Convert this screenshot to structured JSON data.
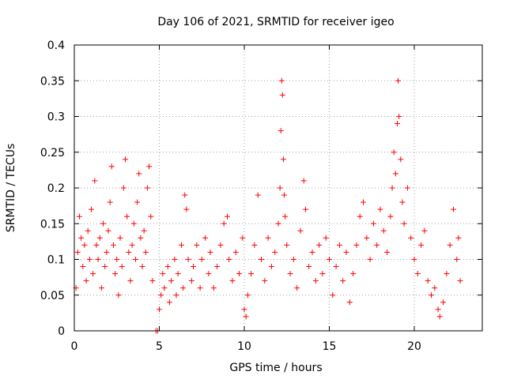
{
  "chart_data": {
    "type": "scatter",
    "title": "Day 106 of 2021, SRMTID for receiver igeo",
    "xlabel": "GPS time / hours",
    "ylabel": "SRMTID / TECUs",
    "xlim": [
      0,
      24
    ],
    "ylim": [
      0,
      0.4
    ],
    "x_ticks": [
      0,
      5,
      10,
      15,
      20
    ],
    "y_ticks": [
      0,
      0.05,
      0.1,
      0.15,
      0.2,
      0.25,
      0.3,
      0.35,
      0.4
    ],
    "x_tick_labels": [
      "0",
      "5",
      "10",
      "15",
      "20"
    ],
    "y_tick_labels": [
      "0",
      "0.05",
      "0.1",
      "0.15",
      "0.2",
      "0.25",
      "0.3",
      "0.35",
      "0.4"
    ],
    "grid": true,
    "marker": "+",
    "marker_color": "#ff0000",
    "series": [
      {
        "name": "SRMTID",
        "points": [
          [
            0.1,
            0.06
          ],
          [
            0.2,
            0.11
          ],
          [
            0.3,
            0.16
          ],
          [
            0.4,
            0.13
          ],
          [
            0.5,
            0.09
          ],
          [
            0.6,
            0.12
          ],
          [
            0.7,
            0.07
          ],
          [
            0.8,
            0.14
          ],
          [
            0.9,
            0.1
          ],
          [
            1.0,
            0.17
          ],
          [
            1.1,
            0.08
          ],
          [
            1.2,
            0.21
          ],
          [
            1.3,
            0.12
          ],
          [
            1.4,
            0.1
          ],
          [
            1.5,
            0.13
          ],
          [
            1.6,
            0.06
          ],
          [
            1.7,
            0.15
          ],
          [
            1.8,
            0.09
          ],
          [
            1.9,
            0.11
          ],
          [
            2.0,
            0.14
          ],
          [
            2.1,
            0.18
          ],
          [
            2.2,
            0.23
          ],
          [
            2.3,
            0.12
          ],
          [
            2.4,
            0.08
          ],
          [
            2.5,
            0.1
          ],
          [
            2.6,
            0.05
          ],
          [
            2.7,
            0.13
          ],
          [
            2.8,
            0.09
          ],
          [
            2.9,
            0.2
          ],
          [
            3.0,
            0.24
          ],
          [
            3.1,
            0.16
          ],
          [
            3.2,
            0.11
          ],
          [
            3.3,
            0.07
          ],
          [
            3.4,
            0.12
          ],
          [
            3.5,
            0.15
          ],
          [
            3.6,
            0.1
          ],
          [
            3.7,
            0.18
          ],
          [
            3.8,
            0.22
          ],
          [
            3.9,
            0.13
          ],
          [
            4.0,
            0.09
          ],
          [
            4.1,
            0.14
          ],
          [
            4.2,
            0.11
          ],
          [
            4.3,
            0.2
          ],
          [
            4.4,
            0.23
          ],
          [
            4.5,
            0.16
          ],
          [
            4.6,
            0.07
          ],
          [
            4.8,
            0.0
          ],
          [
            4.9,
            0.0
          ],
          [
            5.0,
            0.03
          ],
          [
            5.1,
            0.05
          ],
          [
            5.2,
            0.08
          ],
          [
            5.3,
            0.06
          ],
          [
            5.5,
            0.09
          ],
          [
            5.6,
            0.04
          ],
          [
            5.7,
            0.07
          ],
          [
            5.9,
            0.1
          ],
          [
            6.0,
            0.05
          ],
          [
            6.1,
            0.08
          ],
          [
            6.3,
            0.12
          ],
          [
            6.4,
            0.06
          ],
          [
            6.5,
            0.19
          ],
          [
            6.6,
            0.17
          ],
          [
            6.7,
            0.1
          ],
          [
            6.9,
            0.07
          ],
          [
            7.0,
            0.09
          ],
          [
            7.2,
            0.12
          ],
          [
            7.4,
            0.06
          ],
          [
            7.5,
            0.1
          ],
          [
            7.7,
            0.13
          ],
          [
            7.9,
            0.08
          ],
          [
            8.0,
            0.11
          ],
          [
            8.2,
            0.06
          ],
          [
            8.4,
            0.09
          ],
          [
            8.6,
            0.12
          ],
          [
            8.8,
            0.15
          ],
          [
            9.0,
            0.16
          ],
          [
            9.1,
            0.1
          ],
          [
            9.3,
            0.07
          ],
          [
            9.5,
            0.11
          ],
          [
            9.7,
            0.08
          ],
          [
            9.9,
            0.13
          ],
          [
            10.0,
            0.03
          ],
          [
            10.1,
            0.02
          ],
          [
            10.2,
            0.05
          ],
          [
            10.4,
            0.08
          ],
          [
            10.6,
            0.12
          ],
          [
            10.8,
            0.19
          ],
          [
            11.0,
            0.1
          ],
          [
            11.2,
            0.07
          ],
          [
            11.4,
            0.13
          ],
          [
            11.6,
            0.09
          ],
          [
            11.8,
            0.11
          ],
          [
            12.0,
            0.15
          ],
          [
            12.1,
            0.2
          ],
          [
            12.15,
            0.28
          ],
          [
            12.2,
            0.35
          ],
          [
            12.25,
            0.33
          ],
          [
            12.3,
            0.24
          ],
          [
            12.35,
            0.19
          ],
          [
            12.4,
            0.16
          ],
          [
            12.5,
            0.12
          ],
          [
            12.7,
            0.08
          ],
          [
            12.9,
            0.1
          ],
          [
            13.1,
            0.06
          ],
          [
            13.3,
            0.14
          ],
          [
            13.5,
            0.21
          ],
          [
            13.6,
            0.17
          ],
          [
            13.8,
            0.09
          ],
          [
            14.0,
            0.11
          ],
          [
            14.2,
            0.07
          ],
          [
            14.4,
            0.12
          ],
          [
            14.6,
            0.08
          ],
          [
            14.8,
            0.13
          ],
          [
            15.0,
            0.1
          ],
          [
            15.2,
            0.05
          ],
          [
            15.4,
            0.09
          ],
          [
            15.6,
            0.12
          ],
          [
            15.8,
            0.07
          ],
          [
            16.0,
            0.11
          ],
          [
            16.2,
            0.04
          ],
          [
            16.4,
            0.08
          ],
          [
            16.6,
            0.12
          ],
          [
            16.8,
            0.16
          ],
          [
            17.0,
            0.18
          ],
          [
            17.2,
            0.13
          ],
          [
            17.4,
            0.1
          ],
          [
            17.6,
            0.15
          ],
          [
            17.8,
            0.12
          ],
          [
            18.0,
            0.17
          ],
          [
            18.2,
            0.14
          ],
          [
            18.4,
            0.11
          ],
          [
            18.6,
            0.16
          ],
          [
            18.7,
            0.2
          ],
          [
            18.8,
            0.25
          ],
          [
            18.9,
            0.22
          ],
          [
            19.0,
            0.29
          ],
          [
            19.05,
            0.35
          ],
          [
            19.1,
            0.3
          ],
          [
            19.2,
            0.24
          ],
          [
            19.3,
            0.18
          ],
          [
            19.4,
            0.15
          ],
          [
            19.6,
            0.2
          ],
          [
            19.8,
            0.13
          ],
          [
            20.0,
            0.1
          ],
          [
            20.2,
            0.08
          ],
          [
            20.4,
            0.12
          ],
          [
            20.6,
            0.14
          ],
          [
            20.8,
            0.07
          ],
          [
            21.0,
            0.05
          ],
          [
            21.2,
            0.06
          ],
          [
            21.4,
            0.03
          ],
          [
            21.5,
            0.02
          ],
          [
            21.7,
            0.04
          ],
          [
            21.9,
            0.08
          ],
          [
            22.1,
            0.12
          ],
          [
            22.3,
            0.17
          ],
          [
            22.5,
            0.1
          ],
          [
            22.6,
            0.13
          ],
          [
            22.7,
            0.07
          ]
        ]
      }
    ]
  }
}
